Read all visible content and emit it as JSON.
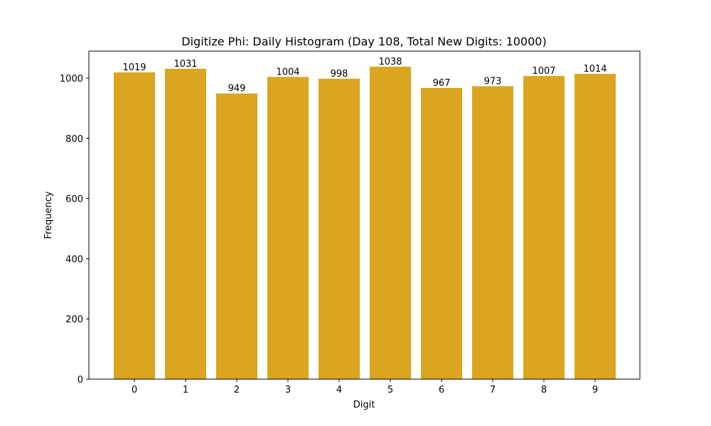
{
  "chart_data": {
    "type": "bar",
    "title": "Digitize Phi: Daily Histogram (Day 108, Total New Digits: 10000)",
    "xlabel": "Digit",
    "ylabel": "Frequency",
    "categories": [
      "0",
      "1",
      "2",
      "3",
      "4",
      "5",
      "6",
      "7",
      "8",
      "9"
    ],
    "values": [
      1019,
      1031,
      949,
      1004,
      998,
      1038,
      967,
      973,
      1007,
      1014
    ],
    "ylim": [
      0,
      1090
    ],
    "yticks": [
      0,
      200,
      400,
      600,
      800,
      1000
    ],
    "grid": false,
    "legend": null,
    "bar_color": "#DAA520",
    "data_labels": true
  }
}
